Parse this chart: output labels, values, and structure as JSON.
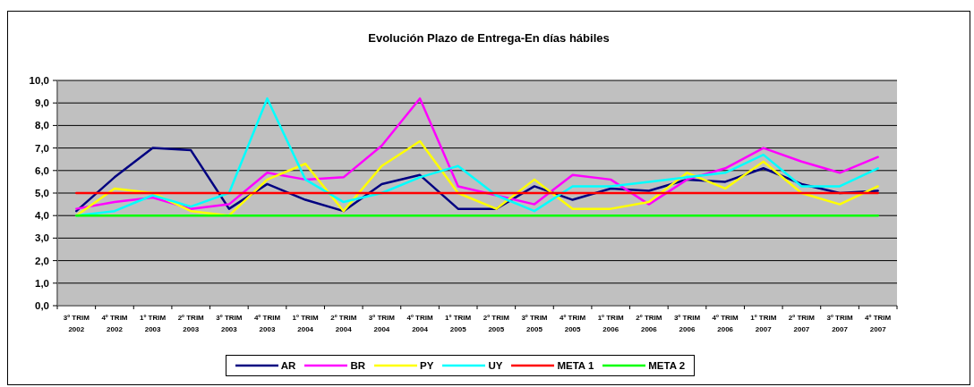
{
  "chart_data": {
    "type": "line",
    "title": "Evolución Plazo de Entrega-En días hábiles",
    "categories": [
      "3º TRIM 2002",
      "4º TRIM 2002",
      "1º TRIM 2003",
      "2º TRIM 2003",
      "3º TRIM 2003",
      "4º TRIM 2003",
      "1º TRIM 2004",
      "2º TRIM 2004",
      "3º TRIM 2004",
      "4º TRIM 2004",
      "1º TRIM 2005",
      "2º TRIM 2005",
      "3º TRIM 2005",
      "4º TRIM 2005",
      "1º TRIM 2006",
      "2º TRIM 2006",
      "3º TRIM 2006",
      "4º TRIM 2006",
      "1º TRIM 2007",
      "2º TRIM 2007",
      "3º TRIM 2007",
      "4º TRIM 2007"
    ],
    "series": [
      {
        "name": "AR",
        "color": "#000080",
        "values": [
          4.2,
          5.7,
          7.0,
          6.9,
          4.3,
          5.4,
          4.7,
          4.2,
          5.4,
          5.8,
          4.3,
          4.3,
          5.3,
          4.7,
          5.2,
          5.1,
          5.6,
          5.5,
          6.1,
          5.4,
          5.0,
          5.1
        ]
      },
      {
        "name": "BR",
        "color": "#ff00ff",
        "values": [
          4.3,
          4.6,
          4.8,
          4.3,
          4.5,
          5.9,
          5.6,
          5.7,
          7.1,
          9.2,
          5.3,
          4.9,
          4.5,
          5.8,
          5.6,
          4.5,
          5.6,
          6.1,
          7.0,
          6.4,
          5.9,
          6.6
        ]
      },
      {
        "name": "PY",
        "color": "#ffff00",
        "values": [
          4.0,
          5.2,
          5.0,
          4.2,
          4.0,
          5.6,
          6.3,
          4.2,
          6.2,
          7.3,
          5.0,
          4.3,
          5.6,
          4.3,
          4.3,
          4.6,
          5.9,
          5.2,
          6.4,
          5.0,
          4.5,
          5.3
        ]
      },
      {
        "name": "UY",
        "color": "#00ffff",
        "values": [
          4.0,
          4.2,
          4.9,
          4.4,
          5.0,
          9.2,
          5.6,
          4.6,
          5.0,
          5.7,
          6.2,
          4.9,
          4.2,
          5.3,
          5.3,
          5.5,
          5.7,
          5.9,
          6.7,
          5.3,
          5.3,
          6.1
        ]
      },
      {
        "name": "META 1",
        "color": "#ff0000",
        "values": [
          5.0,
          5.0,
          5.0,
          5.0,
          5.0,
          5.0,
          5.0,
          5.0,
          5.0,
          5.0,
          5.0,
          5.0,
          5.0,
          5.0,
          5.0,
          5.0,
          5.0,
          5.0,
          5.0,
          5.0,
          5.0,
          5.0
        ]
      },
      {
        "name": "META 2",
        "color": "#00ff00",
        "values": [
          4.0,
          4.0,
          4.0,
          4.0,
          4.0,
          4.0,
          4.0,
          4.0,
          4.0,
          4.0,
          4.0,
          4.0,
          4.0,
          4.0,
          4.0,
          4.0,
          4.0,
          4.0,
          4.0,
          4.0,
          4.0,
          4.0
        ]
      }
    ],
    "ylim": [
      0,
      10
    ],
    "yticks": [
      {
        "value": 0,
        "label": "0,0"
      },
      {
        "value": 1,
        "label": "1,0"
      },
      {
        "value": 2,
        "label": "2,0"
      },
      {
        "value": 3,
        "label": "3,0"
      },
      {
        "value": 4,
        "label": "4,0"
      },
      {
        "value": 5,
        "label": "5,0"
      },
      {
        "value": 6,
        "label": "6,0"
      },
      {
        "value": 7,
        "label": "7,0"
      },
      {
        "value": 8,
        "label": "8,0"
      },
      {
        "value": 9,
        "label": "9,0"
      },
      {
        "value": 10,
        "label": "10,0"
      }
    ],
    "grid": "y",
    "legend": "bottom",
    "marker": "none"
  }
}
